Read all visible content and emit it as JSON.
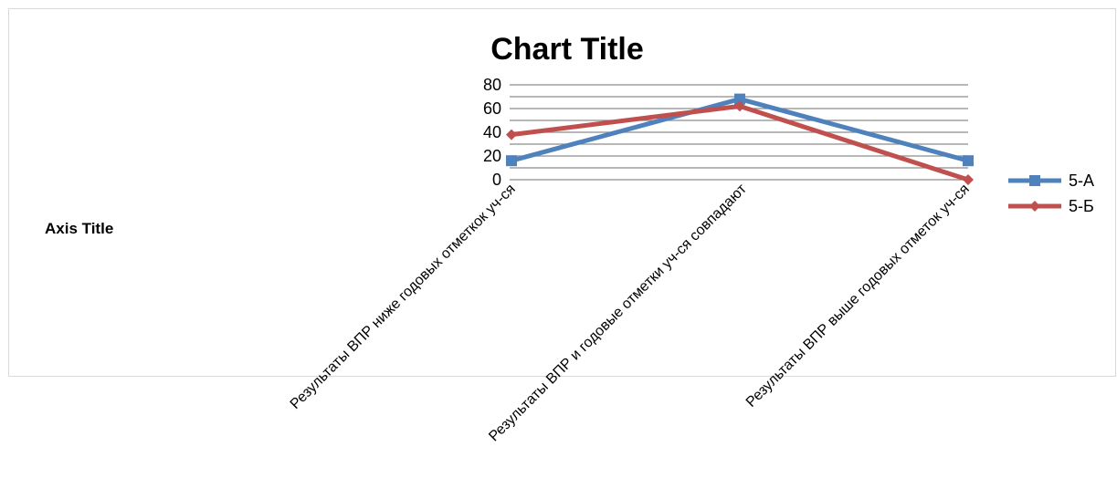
{
  "chart_data": {
    "type": "line",
    "title": "Chart Title",
    "ylabel": "Axis Title",
    "xlabel": "",
    "categories": [
      "Результаты  ВПР    ниже  годовых отметкок уч-ся",
      "Результаты ВПР и годовые отметки уч-ся совпадают",
      "Результаты ВПР  выше годовых отметок уч-ся"
    ],
    "series": [
      {
        "name": "5-А",
        "values": [
          16,
          68,
          16
        ],
        "color": "#4f81bd",
        "marker": "square"
      },
      {
        "name": "5-Б",
        "values": [
          38,
          62,
          0
        ],
        "color": "#c0504d",
        "marker": "diamond"
      }
    ],
    "ylim": [
      0,
      80
    ],
    "yticks": [
      0,
      20,
      40,
      60,
      80
    ],
    "grid": true,
    "legend_position": "right"
  }
}
